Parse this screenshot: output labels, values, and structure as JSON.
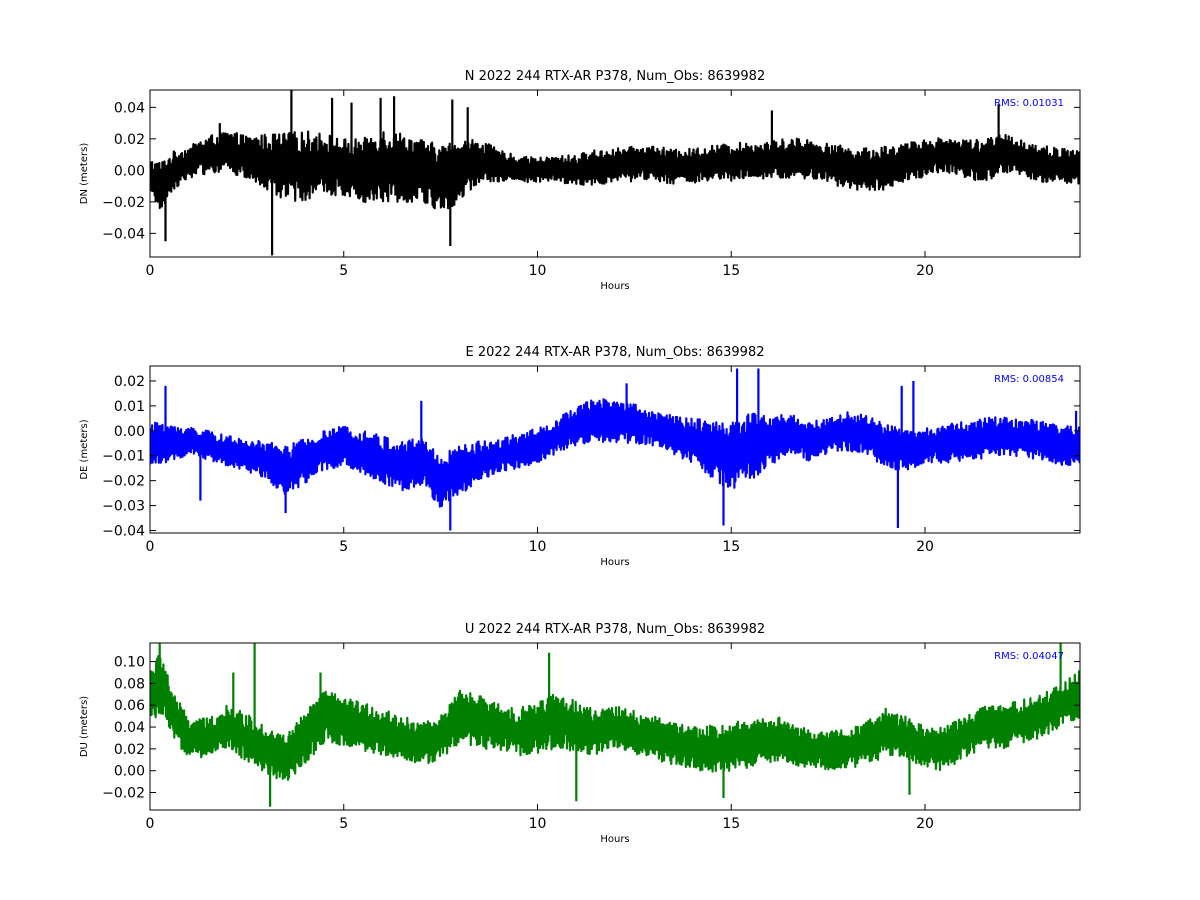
{
  "chart_data": [
    {
      "type": "line",
      "title": "N 2022 244 RTX-AR  P378, Num_Obs: 8639982",
      "xlabel": "Hours",
      "ylabel": "DN (meters)",
      "xlim": [
        0,
        24
      ],
      "ylim": [
        -0.055,
        0.051
      ],
      "xticks": [
        "0",
        "5",
        "10",
        "15",
        "20"
      ],
      "yticks": [
        "−0.04",
        "−0.02",
        "0.00",
        "0.02",
        "0.04"
      ],
      "grid": false,
      "color": "#000000",
      "annotation": "RMS:  0.01031",
      "annotation_color": "#0000ff",
      "x": [
        0.0,
        0.3,
        0.6,
        1.0,
        1.5,
        2.0,
        2.5,
        3.0,
        3.5,
        4.0,
        4.5,
        5.0,
        5.5,
        6.0,
        6.5,
        7.0,
        7.5,
        8.0,
        8.5,
        9.0,
        9.5,
        10.0,
        10.5,
        11.0,
        11.5,
        12.0,
        12.5,
        13.0,
        13.5,
        14.0,
        14.5,
        15.0,
        15.5,
        16.0,
        16.5,
        17.0,
        17.5,
        18.0,
        18.5,
        19.0,
        19.5,
        20.0,
        20.5,
        21.0,
        21.5,
        22.0,
        22.5,
        23.0,
        23.5,
        24.0
      ],
      "center": [
        -0.005,
        -0.01,
        0.0,
        0.005,
        0.01,
        0.012,
        0.008,
        0.005,
        0.002,
        0.003,
        0.004,
        0.002,
        0.0,
        0.003,
        0.002,
        0.0,
        -0.006,
        0.0,
        0.006,
        0.003,
        0.001,
        0.0,
        0.001,
        0.0,
        0.002,
        0.003,
        0.004,
        0.005,
        0.002,
        0.003,
        0.004,
        0.005,
        0.006,
        0.006,
        0.008,
        0.007,
        0.004,
        0.002,
        0.0,
        0.002,
        0.005,
        0.008,
        0.01,
        0.008,
        0.006,
        0.01,
        0.008,
        0.004,
        0.003,
        0.002
      ],
      "amplitude": [
        0.012,
        0.016,
        0.012,
        0.01,
        0.012,
        0.013,
        0.014,
        0.018,
        0.022,
        0.022,
        0.02,
        0.018,
        0.02,
        0.024,
        0.022,
        0.02,
        0.022,
        0.02,
        0.014,
        0.01,
        0.008,
        0.008,
        0.008,
        0.01,
        0.011,
        0.011,
        0.011,
        0.011,
        0.011,
        0.011,
        0.012,
        0.012,
        0.012,
        0.012,
        0.013,
        0.013,
        0.013,
        0.013,
        0.014,
        0.014,
        0.012,
        0.012,
        0.011,
        0.012,
        0.014,
        0.013,
        0.012,
        0.012,
        0.011,
        0.011
      ],
      "spikes": [
        [
          0.4,
          -0.045
        ],
        [
          1.8,
          0.03
        ],
        [
          3.15,
          -0.054
        ],
        [
          3.65,
          0.051
        ],
        [
          4.7,
          0.046
        ],
        [
          5.2,
          0.043
        ],
        [
          5.95,
          0.046
        ],
        [
          6.3,
          0.047
        ],
        [
          7.75,
          -0.048
        ],
        [
          7.8,
          0.045
        ],
        [
          8.2,
          0.04
        ],
        [
          16.05,
          0.038
        ],
        [
          21.9,
          0.042
        ]
      ],
      "bold_step": 0.02
    },
    {
      "type": "line",
      "title": "E 2022 244 RTX-AR  P378, Num_Obs: 8639982",
      "xlabel": "Hours",
      "ylabel": "DE (meters)",
      "xlim": [
        0,
        24
      ],
      "ylim": [
        -0.041,
        0.026
      ],
      "xticks": [
        "0",
        "5",
        "10",
        "15",
        "20"
      ],
      "yticks": [
        "−0.04",
        "−0.03",
        "−0.02",
        "−0.01",
        "0.00",
        "0.01",
        "0.02"
      ],
      "grid": false,
      "color": "#0000ff",
      "annotation": "RMS:  0.00854",
      "annotation_color": "#0000ff",
      "x": [
        0.0,
        0.3,
        0.6,
        1.0,
        1.5,
        2.0,
        2.5,
        3.0,
        3.5,
        4.0,
        4.5,
        5.0,
        5.5,
        6.0,
        6.5,
        7.0,
        7.5,
        8.0,
        8.5,
        9.0,
        9.5,
        10.0,
        10.5,
        11.0,
        11.5,
        12.0,
        12.5,
        13.0,
        13.5,
        14.0,
        14.5,
        15.0,
        15.5,
        16.0,
        16.5,
        17.0,
        17.5,
        18.0,
        18.5,
        19.0,
        19.5,
        20.0,
        20.5,
        21.0,
        21.5,
        22.0,
        22.5,
        23.0,
        23.5,
        24.0
      ],
      "center": [
        -0.006,
        -0.004,
        -0.005,
        -0.004,
        -0.006,
        -0.008,
        -0.01,
        -0.012,
        -0.016,
        -0.012,
        -0.008,
        -0.006,
        -0.008,
        -0.012,
        -0.014,
        -0.012,
        -0.02,
        -0.016,
        -0.012,
        -0.01,
        -0.008,
        -0.006,
        -0.002,
        0.002,
        0.004,
        0.004,
        0.003,
        0.001,
        -0.002,
        -0.004,
        -0.008,
        -0.01,
        -0.006,
        -0.004,
        -0.001,
        -0.004,
        -0.002,
        0.0,
        -0.002,
        -0.006,
        -0.008,
        -0.006,
        -0.005,
        -0.004,
        -0.003,
        -0.002,
        -0.003,
        -0.004,
        -0.006,
        -0.006
      ],
      "amplitude": [
        0.008,
        0.009,
        0.007,
        0.006,
        0.006,
        0.006,
        0.006,
        0.008,
        0.01,
        0.009,
        0.008,
        0.008,
        0.009,
        0.01,
        0.01,
        0.01,
        0.011,
        0.01,
        0.008,
        0.007,
        0.007,
        0.007,
        0.007,
        0.008,
        0.009,
        0.009,
        0.008,
        0.007,
        0.008,
        0.009,
        0.012,
        0.014,
        0.014,
        0.01,
        0.008,
        0.008,
        0.007,
        0.008,
        0.008,
        0.009,
        0.008,
        0.007,
        0.008,
        0.008,
        0.008,
        0.008,
        0.008,
        0.008,
        0.008,
        0.008
      ],
      "spikes": [
        [
          0.4,
          0.018
        ],
        [
          1.3,
          -0.028
        ],
        [
          3.5,
          -0.033
        ],
        [
          7.0,
          0.012
        ],
        [
          7.75,
          -0.04
        ],
        [
          12.3,
          0.019
        ],
        [
          14.8,
          -0.038
        ],
        [
          15.15,
          0.025
        ],
        [
          15.7,
          0.025
        ],
        [
          19.3,
          -0.039
        ],
        [
          19.4,
          0.018
        ],
        [
          19.7,
          0.02
        ],
        [
          23.9,
          0.008
        ]
      ],
      "bold_step": 0.02
    },
    {
      "type": "line",
      "title": "U 2022 244 RTX-AR  P378, Num_Obs: 8639982",
      "xlabel": "Hours",
      "ylabel": "DU (meters)",
      "xlim": [
        0,
        24
      ],
      "ylim": [
        -0.036,
        0.117
      ],
      "xticks": [
        "0",
        "5",
        "10",
        "15",
        "20"
      ],
      "yticks": [
        "−0.02",
        "0.00",
        "0.02",
        "0.04",
        "0.06",
        "0.08",
        "0.10"
      ],
      "grid": false,
      "color": "#008000",
      "annotation": "RMS:  0.04047",
      "annotation_color": "#0000ff",
      "x": [
        0.0,
        0.3,
        0.6,
        1.0,
        1.5,
        2.0,
        2.5,
        3.0,
        3.5,
        4.0,
        4.5,
        5.0,
        5.5,
        6.0,
        6.5,
        7.0,
        7.5,
        8.0,
        8.5,
        9.0,
        9.5,
        10.0,
        10.5,
        11.0,
        11.5,
        12.0,
        12.5,
        13.0,
        13.5,
        14.0,
        14.5,
        15.0,
        15.5,
        16.0,
        16.5,
        17.0,
        17.5,
        18.0,
        18.5,
        19.0,
        19.5,
        20.0,
        20.5,
        21.0,
        21.5,
        22.0,
        22.5,
        23.0,
        23.5,
        24.0
      ],
      "center": [
        0.07,
        0.08,
        0.05,
        0.03,
        0.03,
        0.04,
        0.03,
        0.02,
        0.01,
        0.03,
        0.05,
        0.045,
        0.04,
        0.035,
        0.03,
        0.025,
        0.03,
        0.05,
        0.045,
        0.04,
        0.035,
        0.04,
        0.045,
        0.04,
        0.035,
        0.04,
        0.035,
        0.03,
        0.025,
        0.02,
        0.02,
        0.022,
        0.025,
        0.03,
        0.025,
        0.02,
        0.018,
        0.02,
        0.025,
        0.035,
        0.03,
        0.022,
        0.02,
        0.03,
        0.04,
        0.04,
        0.045,
        0.05,
        0.06,
        0.07
      ],
      "amplitude": [
        0.025,
        0.03,
        0.022,
        0.018,
        0.018,
        0.02,
        0.022,
        0.022,
        0.022,
        0.024,
        0.024,
        0.022,
        0.022,
        0.022,
        0.02,
        0.02,
        0.02,
        0.024,
        0.024,
        0.022,
        0.022,
        0.024,
        0.026,
        0.024,
        0.02,
        0.02,
        0.02,
        0.02,
        0.02,
        0.02,
        0.022,
        0.022,
        0.022,
        0.022,
        0.02,
        0.018,
        0.018,
        0.018,
        0.02,
        0.022,
        0.02,
        0.02,
        0.02,
        0.02,
        0.02,
        0.02,
        0.02,
        0.02,
        0.02,
        0.022
      ],
      "spikes": [
        [
          0.25,
          0.117
        ],
        [
          2.15,
          0.09
        ],
        [
          2.7,
          0.117
        ],
        [
          3.1,
          -0.033
        ],
        [
          4.4,
          0.09
        ],
        [
          10.3,
          0.108
        ],
        [
          11.0,
          -0.028
        ],
        [
          14.8,
          -0.025
        ],
        [
          19.6,
          -0.022
        ],
        [
          23.5,
          0.117
        ]
      ],
      "bold_step": 0.02
    }
  ]
}
